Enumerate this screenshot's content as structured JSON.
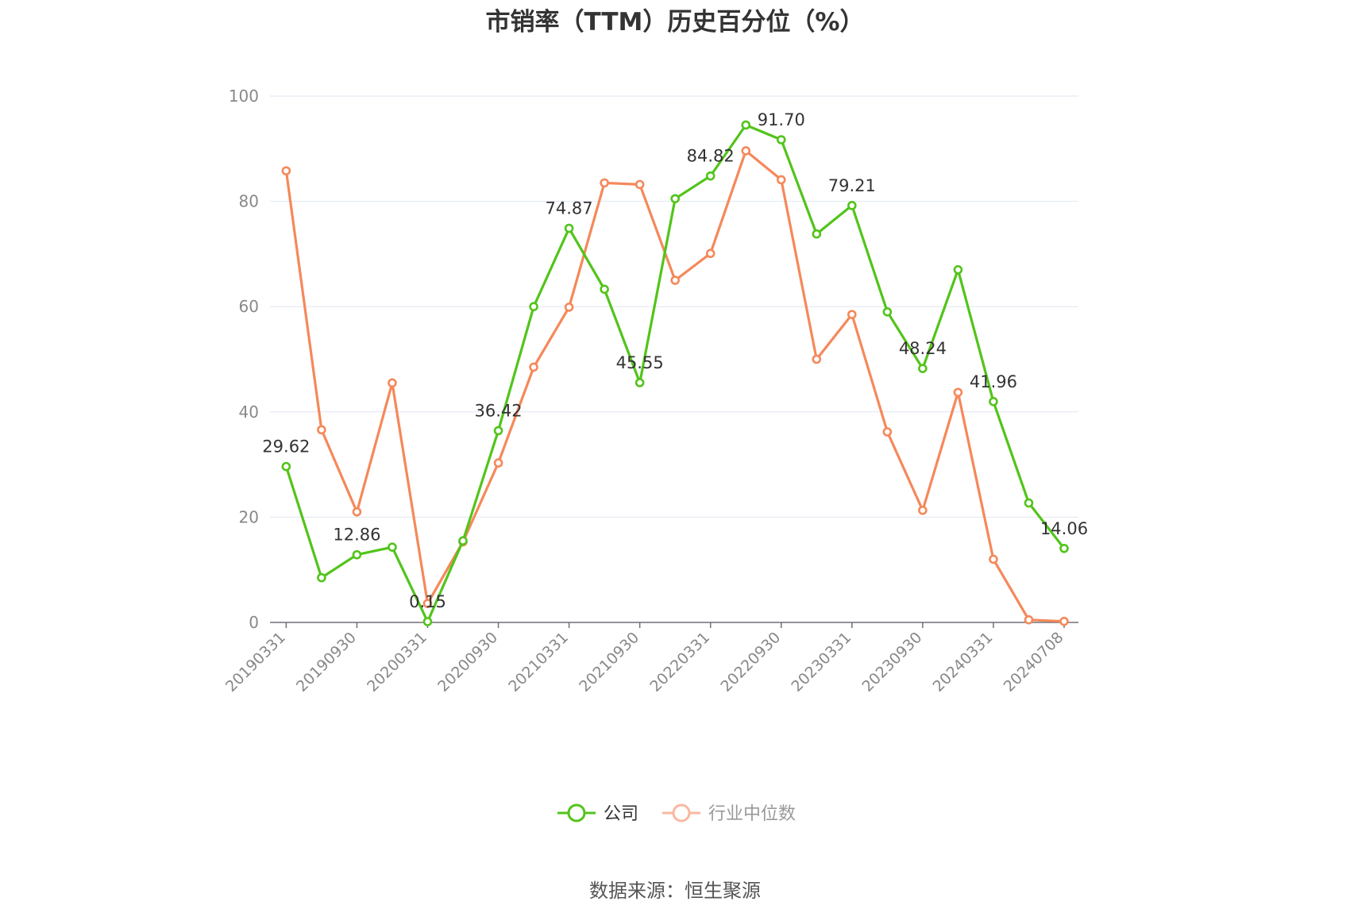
{
  "title": "市销率（TTM）历史百分位（%）",
  "source": "数据来源：恒生聚源",
  "legend": [
    {
      "label": "公司",
      "color": "#52c41a",
      "active": true
    },
    {
      "label": "行业中位数",
      "color": "#f5885a",
      "active": false
    }
  ],
  "chart_data": {
    "type": "line",
    "title": "市销率（TTM）历史百分位（%）",
    "ylim": [
      0,
      100
    ],
    "y_ticks": [
      "0",
      "20",
      "40",
      "60",
      "80",
      "100"
    ],
    "x_tick_labels": [
      "20190331",
      "20190930",
      "20200331",
      "20200930",
      "20210331",
      "20210930",
      "20220331",
      "20220930",
      "20230331",
      "20230930",
      "20240331",
      "20240708"
    ],
    "grid": true,
    "legend_position": "bottom",
    "x": [
      "20190331",
      "20190630",
      "20190930",
      "20191231",
      "20200331",
      "20200630",
      "20200930",
      "20201231",
      "20210331",
      "20210630",
      "20210930",
      "20211231",
      "20220331",
      "20220630",
      "20220930",
      "20221231",
      "20230331",
      "20230630",
      "20230930",
      "20231231",
      "20240331",
      "20240630",
      "20240708"
    ],
    "series": [
      {
        "name": "公司",
        "color": "#52c41a",
        "values": [
          29.62,
          8.5,
          12.86,
          14.3,
          0.15,
          15.5,
          36.42,
          60.0,
          74.87,
          63.3,
          45.55,
          80.5,
          84.82,
          94.5,
          91.7,
          73.8,
          79.21,
          59.0,
          48.24,
          67.0,
          41.96,
          22.7,
          14.06
        ],
        "labels": [
          "29.62",
          "",
          "12.86",
          "",
          "0.15",
          "",
          "36.42",
          "",
          "74.87",
          "",
          "45.55",
          "",
          "84.82",
          "",
          "91.70",
          "",
          "79.21",
          "",
          "48.24",
          "",
          "41.96",
          "",
          "14.06"
        ]
      },
      {
        "name": "行业中位数",
        "color": "#f5885a",
        "values": [
          85.8,
          36.6,
          21.0,
          45.5,
          3.6,
          15.3,
          30.3,
          48.5,
          59.9,
          83.5,
          83.2,
          65.0,
          70.1,
          89.6,
          84.1,
          50.0,
          58.5,
          36.2,
          21.3,
          43.7,
          12.0,
          0.5,
          0.2
        ]
      }
    ]
  }
}
